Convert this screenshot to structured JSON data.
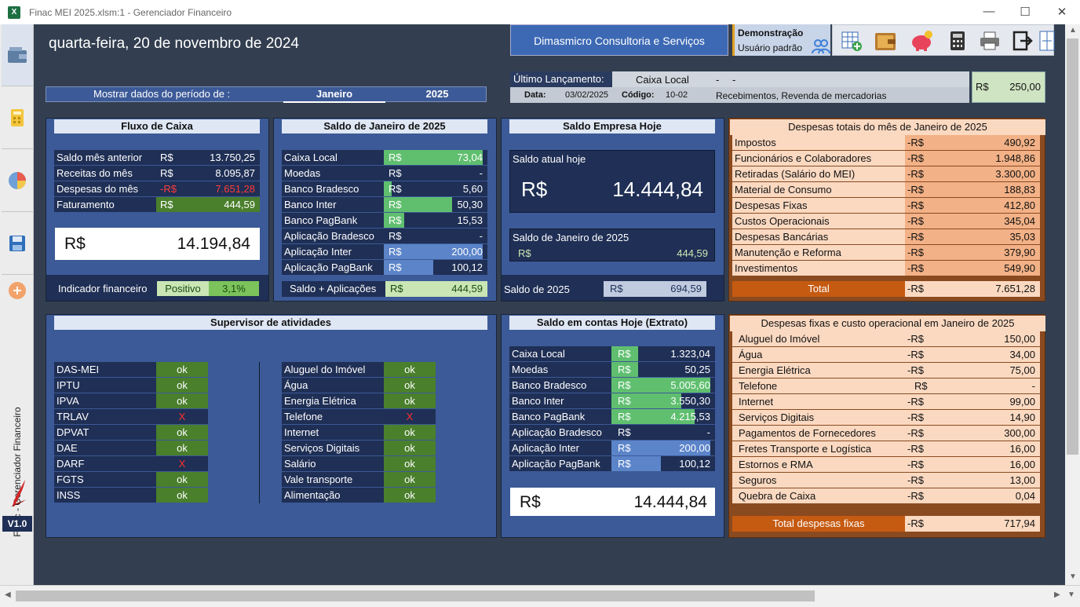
{
  "window": {
    "title": "Finac MEI 2025.xlsm:1 - Gerenciador Financeiro",
    "app_icon": "X"
  },
  "header": {
    "date": "quarta-feira, 20 de novembro de 2024",
    "company": "Dimasmicro Consultoria e Serviços",
    "mode": "Demonstração",
    "user": "Usuário padrão"
  },
  "period": {
    "label": "Mostrar dados do período de :",
    "month": "Janeiro",
    "year": "2025"
  },
  "last_entry": {
    "label": "Último Lançamento:",
    "account": "Caixa Local",
    "dash1": "-",
    "dash2": "-",
    "date_label": "Data:",
    "date": "03/02/2025",
    "code_label": "Código:",
    "code": "10-02",
    "description": "Recebimentos, Revenda de mercadorias",
    "currency": "R$",
    "value": "250,00"
  },
  "sidebar": {
    "vertical_label": "Finac - Gerenciador Financeiro",
    "version": "V1.0"
  },
  "currency": "R$",
  "neg_currency": "-R$",
  "fluxo": {
    "title": "Fluxo de Caixa",
    "rows": [
      {
        "label": "Saldo  mês anterior",
        "cur": "R$",
        "value": "13.750,25"
      },
      {
        "label": "Receitas do mês",
        "cur": "R$",
        "value": "8.095,87"
      },
      {
        "label": "Despesas do mês",
        "cur": "-R$",
        "value": "7.651,28"
      },
      {
        "label": "Faturamento",
        "cur": "R$",
        "value": "444,59"
      }
    ],
    "total": "14.194,84",
    "indicator_label": "Indicador financeiro",
    "indicator_status": "Positivo",
    "indicator_pct": "3,1%"
  },
  "saldo_mes": {
    "title": "Saldo de Janeiro de 2025",
    "rows": [
      {
        "label": "Caixa Local",
        "value": "73,04",
        "fill": 1.0
      },
      {
        "label": "Moedas",
        "value": "-",
        "fill": 0
      },
      {
        "label": "Banco Bradesco",
        "value": "5,60",
        "fill": 0.08
      },
      {
        "label": "Banco Inter",
        "value": "50,30",
        "fill": 0.69
      },
      {
        "label": "Banco PagBank",
        "value": "15,53",
        "fill": 0.21
      },
      {
        "label": "Aplicação Bradesco",
        "value": "-",
        "fill": 0
      },
      {
        "label": "Aplicação Inter",
        "value": "200,00",
        "fill": 1.0
      },
      {
        "label": "Aplicação PagBank",
        "value": "100,12",
        "fill": 0.5
      }
    ],
    "footer_label": "Saldo + Aplicações",
    "footer_value": "444,59"
  },
  "empresa": {
    "title": "Saldo Empresa Hoje",
    "today_label": "Saldo atual hoje",
    "today_value": "14.444,84",
    "month_label": "Saldo de Janeiro de 2025",
    "month_value": "444,59",
    "year_label": "Saldo de 2025",
    "year_value": "694,59"
  },
  "despesas_totais": {
    "title": "Despesas totais do mês de Janeiro de 2025",
    "rows": [
      {
        "label": "Impostos",
        "value": "490,92"
      },
      {
        "label": "Funcionários e Colaboradores",
        "value": "1.948,86"
      },
      {
        "label": "Retiradas (Salário do MEI)",
        "value": "3.300,00"
      },
      {
        "label": "Material de Consumo",
        "value": "188,83"
      },
      {
        "label": "Despesas Fixas",
        "value": "412,80"
      },
      {
        "label": "Custos Operacionais",
        "value": "345,04"
      },
      {
        "label": "Despesas Bancárias",
        "value": "35,03"
      },
      {
        "label": "Manutenção e Reforma",
        "value": "379,90"
      },
      {
        "label": "Investimentos",
        "value": "549,90"
      }
    ],
    "total_label": "Total",
    "total_value": "7.651,28"
  },
  "supervisor": {
    "title": "Supervisor de atividades",
    "left": [
      {
        "label": "DAS-MEI",
        "status": "ok"
      },
      {
        "label": "IPTU",
        "status": "ok"
      },
      {
        "label": "IPVA",
        "status": "ok"
      },
      {
        "label": "TRLAV",
        "status": "X"
      },
      {
        "label": "DPVAT",
        "status": "ok"
      },
      {
        "label": "DAE",
        "status": "ok"
      },
      {
        "label": "DARF",
        "status": "X"
      },
      {
        "label": "FGTS",
        "status": "ok"
      },
      {
        "label": "INSS",
        "status": "ok"
      }
    ],
    "right": [
      {
        "label": "Aluguel do Imóvel",
        "status": "ok"
      },
      {
        "label": "Água",
        "status": "ok"
      },
      {
        "label": "Energia Elétrica",
        "status": "ok"
      },
      {
        "label": "Telefone",
        "status": "X"
      },
      {
        "label": "Internet",
        "status": "ok"
      },
      {
        "label": "Serviços Digitais",
        "status": "ok"
      },
      {
        "label": "Salário",
        "status": "ok"
      },
      {
        "label": "Vale transporte",
        "status": "ok"
      },
      {
        "label": "Alimentação",
        "status": "ok"
      }
    ]
  },
  "extrato": {
    "title": "Saldo em contas Hoje (Extrato)",
    "rows": [
      {
        "label": "Caixa Local",
        "value": "1.323,04",
        "fill": 0.26,
        "color": "green"
      },
      {
        "label": "Moedas",
        "value": "50,25",
        "fill": 0.01,
        "color": "green"
      },
      {
        "label": "Banco Bradesco",
        "value": "5.005,60",
        "fill": 1.0,
        "color": "green"
      },
      {
        "label": "Banco Inter",
        "value": "3.550,30",
        "fill": 0.71,
        "color": "green"
      },
      {
        "label": "Banco PagBank",
        "value": "4.215,53",
        "fill": 0.84,
        "color": "green"
      },
      {
        "label": "Aplicação Bradesco",
        "value": "-",
        "fill": 0,
        "color": "blue"
      },
      {
        "label": "Aplicação Inter",
        "value": "200,00",
        "fill": 1.0,
        "color": "blue"
      },
      {
        "label": "Aplicação PagBank",
        "value": "100,12",
        "fill": 0.5,
        "color": "blue"
      }
    ],
    "total": "14.444,84"
  },
  "despesas_fixas": {
    "title": "Despesas fixas  e custo operacional em Janeiro de 2025",
    "rows": [
      {
        "label": "Aluguel do Imóvel",
        "cur": "-R$",
        "value": "150,00"
      },
      {
        "label": "Água",
        "cur": "-R$",
        "value": "34,00"
      },
      {
        "label": "Energia Elétrica",
        "cur": "-R$",
        "value": "75,00"
      },
      {
        "label": "Telefone",
        "cur": "R$",
        "value": "-"
      },
      {
        "label": "Internet",
        "cur": "-R$",
        "value": "99,00"
      },
      {
        "label": "Serviços Digitais",
        "cur": "-R$",
        "value": "14,90"
      },
      {
        "label": "Pagamentos de Fornecedores",
        "cur": "-R$",
        "value": "300,00"
      },
      {
        "label": "Fretes Transporte e Logística",
        "cur": "-R$",
        "value": "16,00"
      },
      {
        "label": "Estornos e RMA",
        "cur": "-R$",
        "value": "16,00"
      },
      {
        "label": "Seguros",
        "cur": "-R$",
        "value": "13,00"
      },
      {
        "label": "Quebra de Caixa",
        "cur": "-R$",
        "value": "0,04"
      }
    ],
    "total_label": "Total despesas fixas",
    "total_value": "717,94"
  },
  "toolbar": {
    "icons": [
      "spreadsheet-add-icon",
      "wallet-icon",
      "piggy-bank-icon",
      "calculator-icon",
      "printer-icon",
      "exit-icon",
      "split-view-icon"
    ]
  }
}
